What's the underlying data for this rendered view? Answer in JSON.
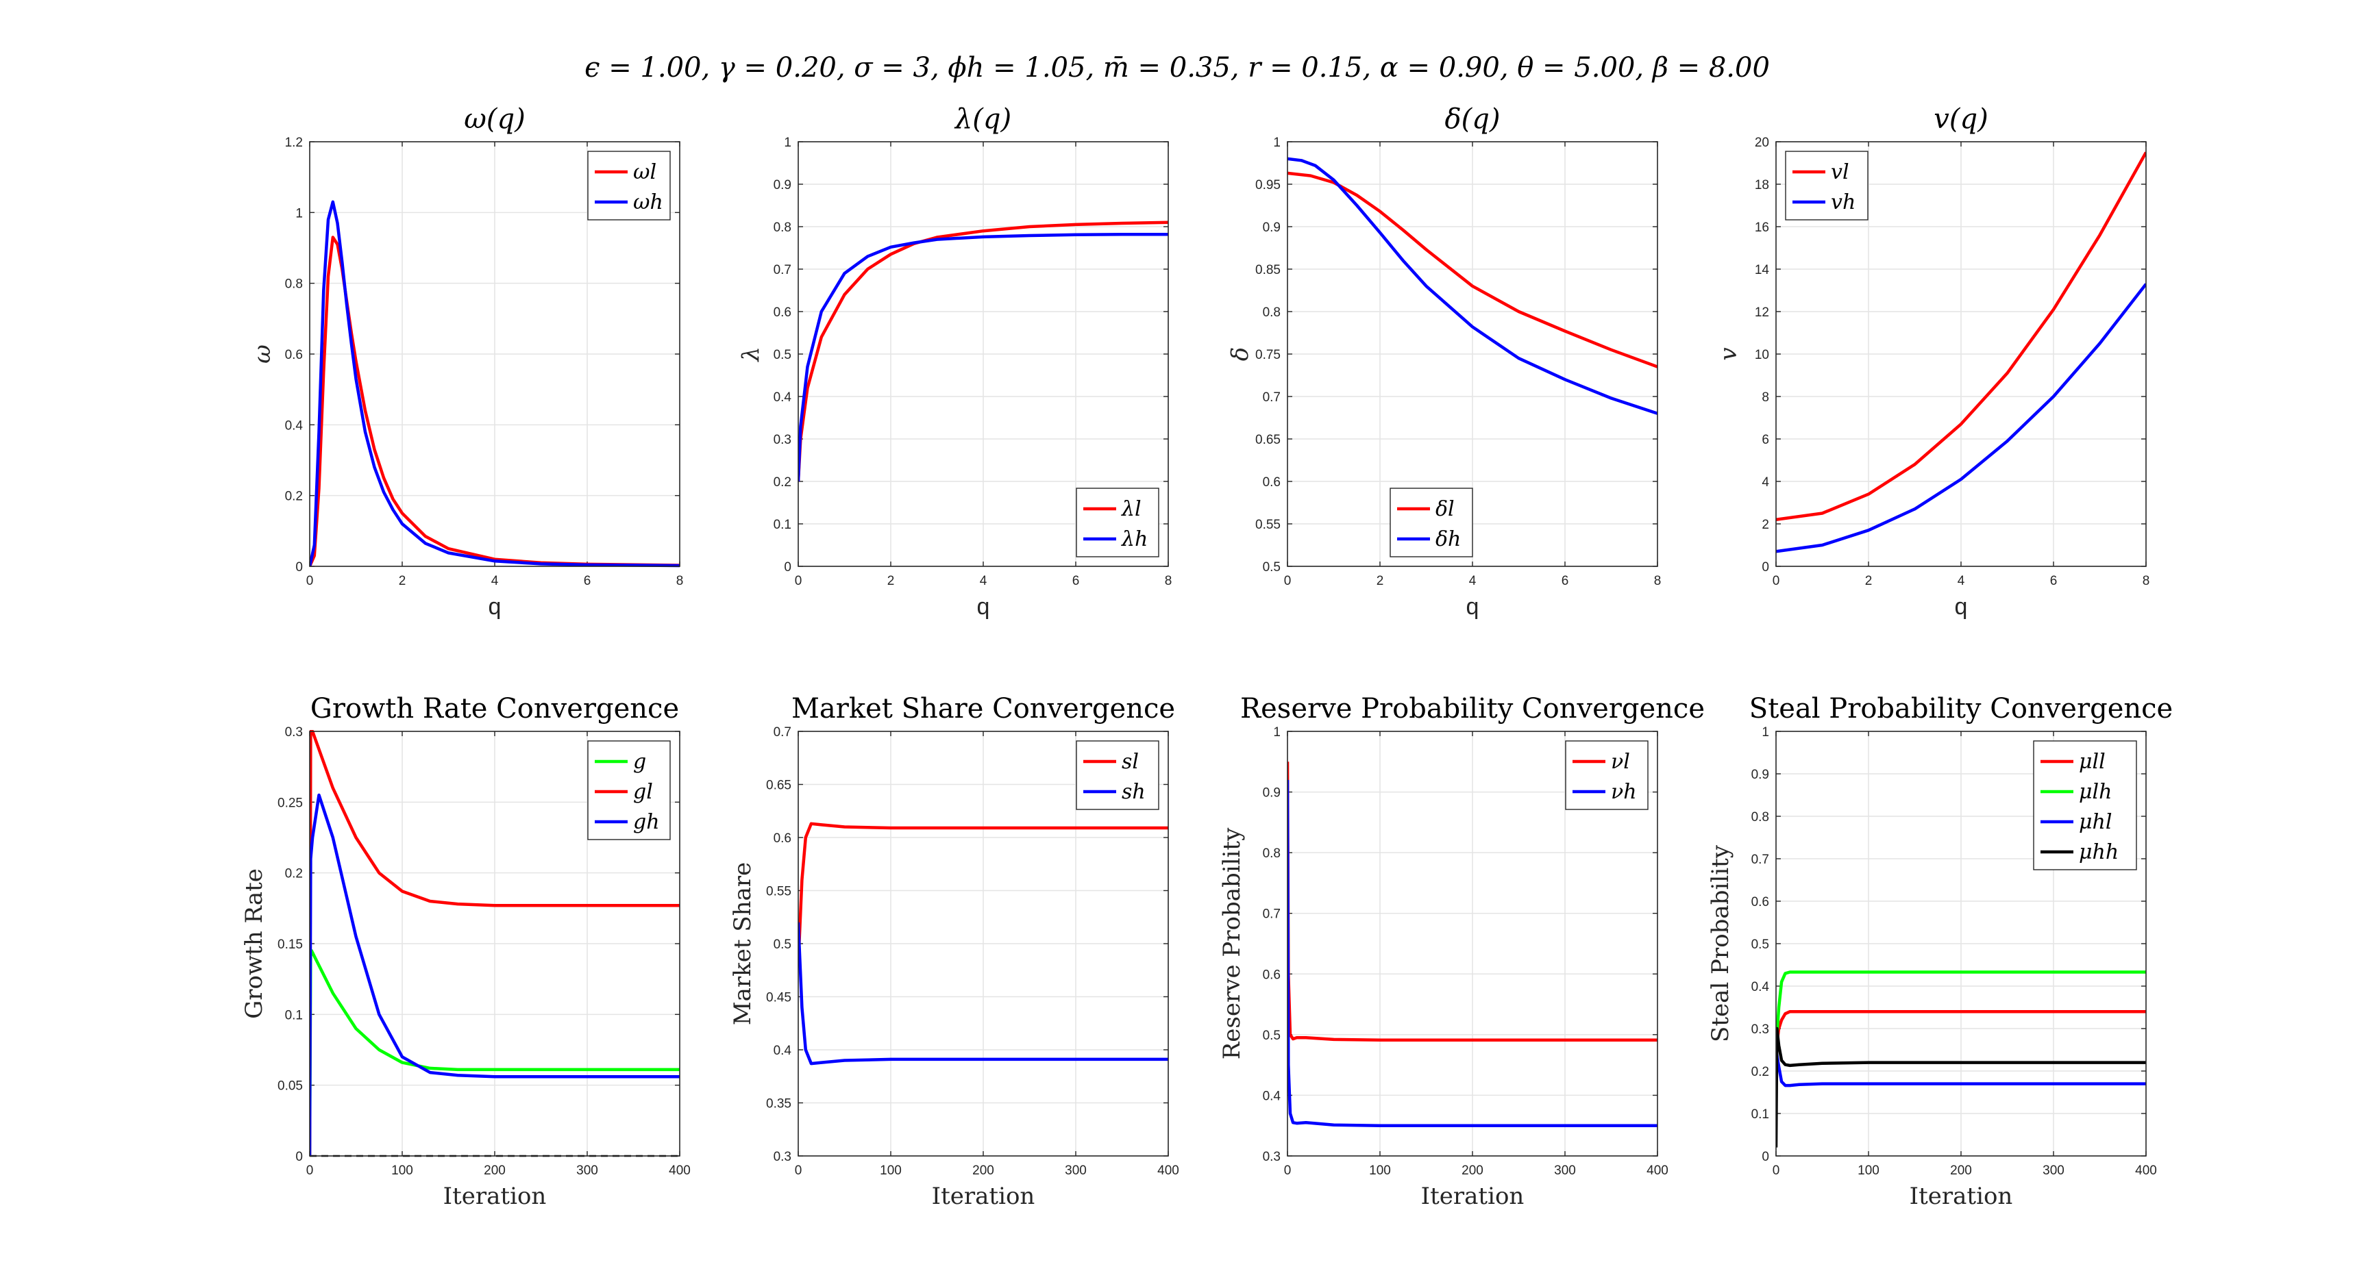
{
  "figure": {
    "suptitle": "ϵ = 1.00, γ = 0.20, σ = 3, ϕh = 1.05, m̄ = 0.35, r = 0.15, α = 0.90, θ = 5.00, β = 8.00"
  },
  "colors": {
    "red": "#ff0000",
    "blue": "#0000ff",
    "green": "#00ff00",
    "black": "#000000",
    "dashed_zero": "#000000"
  },
  "chart_data": [
    {
      "id": "omega",
      "type": "line",
      "title": "ω(q)",
      "xlabel": "q",
      "ylabel": "ω",
      "xlim": [
        0,
        8
      ],
      "ylim": [
        0,
        1.2
      ],
      "xticks": [
        0,
        2,
        4,
        6,
        8
      ],
      "yticks": [
        0,
        0.2,
        0.4,
        0.6,
        0.8,
        1,
        1.2
      ],
      "legend_position": "top-right",
      "grid": true,
      "series": [
        {
          "name": "ωl",
          "color": "red",
          "x": [
            0,
            0.1,
            0.2,
            0.3,
            0.4,
            0.5,
            0.6,
            0.7,
            0.8,
            0.9,
            1.0,
            1.2,
            1.4,
            1.6,
            1.8,
            2.0,
            2.5,
            3.0,
            4.0,
            5.0,
            6.0,
            8.0
          ],
          "y": [
            0,
            0.03,
            0.22,
            0.55,
            0.82,
            0.93,
            0.91,
            0.84,
            0.75,
            0.66,
            0.58,
            0.44,
            0.33,
            0.25,
            0.19,
            0.15,
            0.085,
            0.05,
            0.02,
            0.01,
            0.006,
            0.003
          ]
        },
        {
          "name": "ωh",
          "color": "blue",
          "x": [
            0,
            0.1,
            0.2,
            0.3,
            0.4,
            0.5,
            0.6,
            0.7,
            0.8,
            0.9,
            1.0,
            1.2,
            1.4,
            1.6,
            1.8,
            2.0,
            2.5,
            3.0,
            4.0,
            5.0,
            6.0,
            8.0
          ],
          "y": [
            0,
            0.06,
            0.38,
            0.78,
            0.98,
            1.03,
            0.97,
            0.86,
            0.74,
            0.63,
            0.53,
            0.38,
            0.28,
            0.21,
            0.16,
            0.12,
            0.065,
            0.038,
            0.015,
            0.007,
            0.004,
            0.002
          ]
        }
      ]
    },
    {
      "id": "lambda",
      "type": "line",
      "title": "λ(q)",
      "xlabel": "q",
      "ylabel": "λ",
      "xlim": [
        0,
        8
      ],
      "ylim": [
        0,
        1
      ],
      "xticks": [
        0,
        2,
        4,
        6,
        8
      ],
      "yticks": [
        0,
        0.1,
        0.2,
        0.3,
        0.4,
        0.5,
        0.6,
        0.7,
        0.8,
        0.9,
        1
      ],
      "legend_position": "bottom-right",
      "grid": true,
      "series": [
        {
          "name": "λl",
          "color": "red",
          "x": [
            0,
            0.05,
            0.2,
            0.5,
            1.0,
            1.5,
            2.0,
            2.5,
            3.0,
            4.0,
            5.0,
            6.0,
            7.0,
            8.0
          ],
          "y": [
            0.2,
            0.3,
            0.42,
            0.54,
            0.64,
            0.7,
            0.735,
            0.76,
            0.775,
            0.79,
            0.8,
            0.805,
            0.808,
            0.81
          ]
        },
        {
          "name": "λh",
          "color": "blue",
          "x": [
            0,
            0.05,
            0.2,
            0.5,
            1.0,
            1.5,
            2.0,
            2.5,
            3.0,
            4.0,
            5.0,
            6.0,
            7.0,
            8.0
          ],
          "y": [
            0.2,
            0.33,
            0.47,
            0.6,
            0.69,
            0.73,
            0.752,
            0.762,
            0.77,
            0.776,
            0.779,
            0.781,
            0.782,
            0.782
          ]
        }
      ]
    },
    {
      "id": "delta",
      "type": "line",
      "title": "δ(q)",
      "xlabel": "q",
      "ylabel": "δ",
      "xlim": [
        0,
        8
      ],
      "ylim": [
        0.5,
        1
      ],
      "xticks": [
        0,
        2,
        4,
        6,
        8
      ],
      "yticks": [
        0.5,
        0.55,
        0.6,
        0.65,
        0.7,
        0.75,
        0.8,
        0.85,
        0.9,
        0.95,
        1
      ],
      "legend_position": "bottom-left",
      "grid": true,
      "series": [
        {
          "name": "δl",
          "color": "red",
          "x": [
            0,
            0.5,
            1.0,
            1.5,
            2.0,
            2.5,
            3.0,
            4.0,
            5.0,
            6.0,
            7.0,
            8.0
          ],
          "y": [
            0.963,
            0.96,
            0.952,
            0.937,
            0.918,
            0.896,
            0.873,
            0.83,
            0.8,
            0.777,
            0.755,
            0.735
          ]
        },
        {
          "name": "δh",
          "color": "blue",
          "x": [
            0,
            0.3,
            0.6,
            1.0,
            1.5,
            2.0,
            2.5,
            3.0,
            4.0,
            5.0,
            6.0,
            7.0,
            8.0
          ],
          "y": [
            0.98,
            0.978,
            0.972,
            0.955,
            0.925,
            0.893,
            0.86,
            0.83,
            0.782,
            0.745,
            0.72,
            0.698,
            0.68
          ]
        }
      ]
    },
    {
      "id": "v",
      "type": "line",
      "title": "v(q)",
      "xlabel": "q",
      "ylabel": "v",
      "xlim": [
        0,
        8
      ],
      "ylim": [
        0,
        20
      ],
      "xticks": [
        0,
        2,
        4,
        6,
        8
      ],
      "yticks": [
        0,
        2,
        4,
        6,
        8,
        10,
        12,
        14,
        16,
        18,
        20
      ],
      "legend_position": "top-left",
      "grid": true,
      "series": [
        {
          "name": "vl",
          "color": "red",
          "x": [
            0,
            1,
            2,
            3,
            4,
            5,
            6,
            7,
            8
          ],
          "y": [
            2.2,
            2.5,
            3.4,
            4.8,
            6.7,
            9.1,
            12.1,
            15.6,
            19.5
          ]
        },
        {
          "name": "vh",
          "color": "blue",
          "x": [
            0,
            1,
            2,
            3,
            4,
            5,
            6,
            7,
            8
          ],
          "y": [
            0.7,
            1.0,
            1.7,
            2.7,
            4.1,
            5.9,
            8.0,
            10.5,
            13.3
          ]
        }
      ]
    },
    {
      "id": "growth",
      "type": "line",
      "title": "Growth Rate Convergence",
      "xlabel": "Iteration",
      "ylabel": "Growth Rate",
      "xlim": [
        0,
        400
      ],
      "ylim": [
        0,
        0.3
      ],
      "xticks": [
        0,
        100,
        200,
        300,
        400
      ],
      "yticks": [
        0,
        0.05,
        0.1,
        0.15,
        0.2,
        0.25,
        0.3
      ],
      "legend_position": "top-right",
      "grid": true,
      "zero_line": true,
      "series": [
        {
          "name": "g",
          "color": "green",
          "x": [
            0,
            1,
            2,
            25,
            50,
            75,
            100,
            130,
            160,
            200,
            300,
            400
          ],
          "y": [
            0,
            0.145,
            0.145,
            0.115,
            0.09,
            0.075,
            0.066,
            0.062,
            0.061,
            0.061,
            0.061,
            0.061
          ]
        },
        {
          "name": "gl",
          "color": "red",
          "x": [
            0,
            1,
            2,
            3,
            25,
            50,
            75,
            100,
            130,
            160,
            200,
            300,
            400
          ],
          "y": [
            0,
            0.3,
            0.3,
            0.3,
            0.26,
            0.225,
            0.2,
            0.187,
            0.18,
            0.178,
            0.177,
            0.177,
            0.177
          ]
        },
        {
          "name": "gh",
          "color": "blue",
          "x": [
            0,
            1,
            3,
            10,
            25,
            50,
            75,
            100,
            130,
            160,
            200,
            300,
            400
          ],
          "y": [
            0,
            0.21,
            0.225,
            0.255,
            0.225,
            0.155,
            0.1,
            0.07,
            0.059,
            0.057,
            0.056,
            0.056,
            0.056
          ]
        }
      ]
    },
    {
      "id": "share",
      "type": "line",
      "title": "Market Share Convergence",
      "xlabel": "Iteration",
      "ylabel": "Market Share",
      "xlim": [
        0,
        400
      ],
      "ylim": [
        0.3,
        0.7
      ],
      "xticks": [
        0,
        100,
        200,
        300,
        400
      ],
      "yticks": [
        0.3,
        0.35,
        0.4,
        0.45,
        0.5,
        0.55,
        0.6,
        0.65,
        0.7
      ],
      "legend_position": "top-right",
      "grid": true,
      "series": [
        {
          "name": "sl",
          "color": "red",
          "x": [
            0,
            4,
            8,
            14,
            25,
            50,
            100,
            200,
            300,
            400
          ],
          "y": [
            0.48,
            0.56,
            0.6,
            0.613,
            0.612,
            0.61,
            0.609,
            0.609,
            0.609,
            0.609
          ]
        },
        {
          "name": "sh",
          "color": "blue",
          "x": [
            0,
            4,
            8,
            14,
            25,
            50,
            100,
            200,
            300,
            400
          ],
          "y": [
            0.52,
            0.44,
            0.4,
            0.387,
            0.388,
            0.39,
            0.391,
            0.391,
            0.391,
            0.391
          ]
        }
      ]
    },
    {
      "id": "reserve",
      "type": "line",
      "title": "Reserve Probability Convergence",
      "xlabel": "Iteration",
      "ylabel": "Reserve Probability",
      "xlim": [
        0,
        400
      ],
      "ylim": [
        0.3,
        1
      ],
      "xticks": [
        0,
        100,
        200,
        300,
        400
      ],
      "yticks": [
        0.3,
        0.4,
        0.5,
        0.6,
        0.7,
        0.8,
        0.9,
        1
      ],
      "legend_position": "top-right",
      "grid": true,
      "series": [
        {
          "name": "νl",
          "color": "red",
          "x": [
            0,
            1,
            3,
            6,
            10,
            20,
            50,
            100,
            200,
            300,
            400
          ],
          "y": [
            0.95,
            0.6,
            0.5,
            0.493,
            0.495,
            0.495,
            0.492,
            0.491,
            0.491,
            0.491,
            0.491
          ]
        },
        {
          "name": "νh",
          "color": "blue",
          "x": [
            0,
            1,
            3,
            6,
            10,
            20,
            50,
            100,
            200,
            300,
            400
          ],
          "y": [
            0.92,
            0.45,
            0.37,
            0.355,
            0.354,
            0.355,
            0.351,
            0.35,
            0.35,
            0.35,
            0.35
          ]
        }
      ]
    },
    {
      "id": "steal",
      "type": "line",
      "title": "Steal Probability Convergence",
      "xlabel": "Iteration",
      "ylabel": "Steal Probability",
      "xlim": [
        0,
        400
      ],
      "ylim": [
        0,
        1
      ],
      "xticks": [
        0,
        100,
        200,
        300,
        400
      ],
      "yticks": [
        0,
        0.1,
        0.2,
        0.3,
        0.4,
        0.5,
        0.6,
        0.7,
        0.8,
        0.9,
        1
      ],
      "legend_position": "top-right",
      "grid": true,
      "series": [
        {
          "name": "μll",
          "color": "red",
          "x": [
            0,
            3,
            6,
            10,
            15,
            25,
            50,
            100,
            200,
            300,
            400
          ],
          "y": [
            0.25,
            0.3,
            0.32,
            0.335,
            0.34,
            0.34,
            0.34,
            0.34,
            0.34,
            0.34,
            0.34
          ]
        },
        {
          "name": "μlh",
          "color": "green",
          "x": [
            0,
            3,
            6,
            10,
            15,
            25,
            50,
            100,
            200,
            300,
            400
          ],
          "y": [
            0.25,
            0.35,
            0.41,
            0.43,
            0.433,
            0.433,
            0.433,
            0.433,
            0.433,
            0.433,
            0.433
          ]
        },
        {
          "name": "μhl",
          "color": "blue",
          "x": [
            0,
            3,
            6,
            10,
            15,
            25,
            50,
            100,
            200,
            300,
            400
          ],
          "y": [
            0.25,
            0.21,
            0.175,
            0.166,
            0.166,
            0.168,
            0.17,
            0.17,
            0.17,
            0.17,
            0.17
          ]
        },
        {
          "name": "μhh",
          "color": "black",
          "x": [
            0,
            1,
            3,
            6,
            10,
            15,
            25,
            50,
            100,
            200,
            300,
            400
          ],
          "y": [
            0.02,
            0.3,
            0.26,
            0.225,
            0.215,
            0.213,
            0.215,
            0.218,
            0.22,
            0.22,
            0.22,
            0.22
          ]
        }
      ]
    }
  ]
}
